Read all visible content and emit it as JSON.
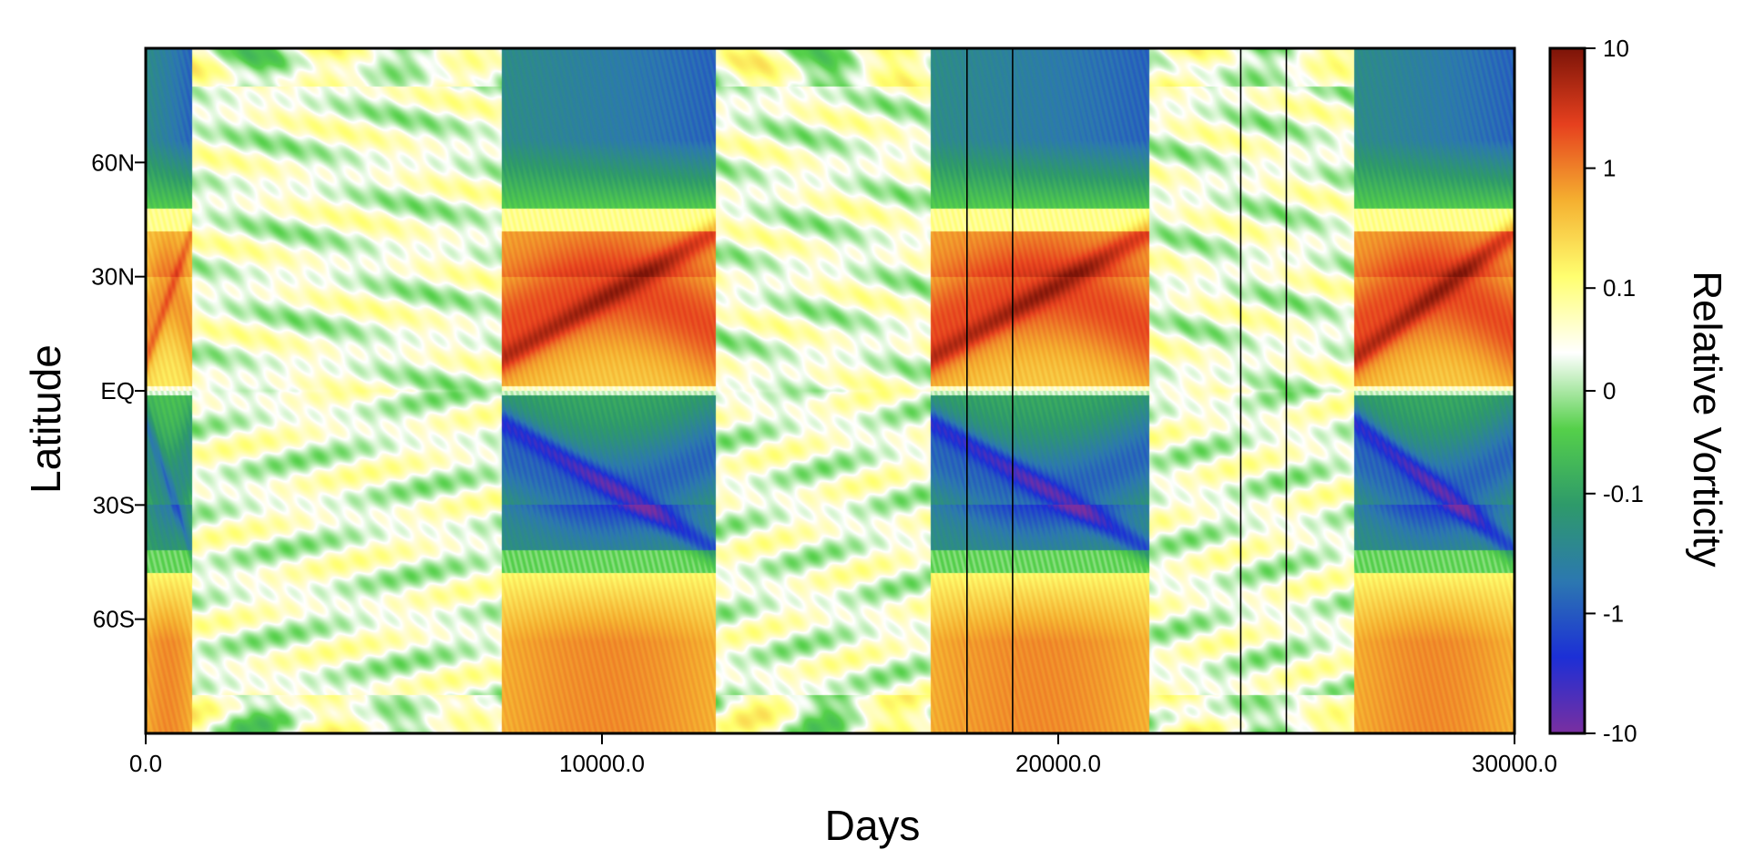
{
  "chart_data": {
    "type": "heatmap",
    "title": "",
    "xlabel": "Days",
    "ylabel": "Latitude",
    "xlim": [
      0,
      30000
    ],
    "x_ticks": [
      {
        "value": 0,
        "label": "0.0"
      },
      {
        "value": 10000,
        "label": "10000.0"
      },
      {
        "value": 20000,
        "label": "20000.0"
      },
      {
        "value": 30000,
        "label": "30000.0"
      }
    ],
    "y_ticks": [
      {
        "value": 60,
        "label": "60N"
      },
      {
        "value": 30,
        "label": "30N"
      },
      {
        "value": 0,
        "label": "EQ"
      },
      {
        "value": -30,
        "label": "30S"
      },
      {
        "value": -60,
        "label": "60S"
      }
    ],
    "ylim": [
      -90,
      90
    ],
    "colorbar": {
      "label": "Relative Vorticity",
      "scale": "symmetric-log",
      "range": [
        -10,
        10
      ],
      "ticks": [
        {
          "value": 10,
          "label": "10"
        },
        {
          "value": 1,
          "label": "1"
        },
        {
          "value": 0.1,
          "label": "0.1"
        },
        {
          "value": 0,
          "label": "0"
        },
        {
          "value": -0.1,
          "label": "-0.1"
        },
        {
          "value": -1,
          "label": "-1"
        },
        {
          "value": -10,
          "label": "-10"
        }
      ],
      "colors": [
        "#7a2fa0",
        "#1c2fd6",
        "#2c78b0",
        "#2e9a6a",
        "#55d04a",
        "#ffffff",
        "#ffff70",
        "#f5b030",
        "#e6401e",
        "#7c1408"
      ]
    },
    "marker_lines_days": [
      18000,
      19000,
      24000,
      25000
    ],
    "regimes": [
      {
        "start": 0,
        "end": 1000,
        "type": "active",
        "strength": 0.7
      },
      {
        "start": 1000,
        "end": 7800,
        "type": "quiet"
      },
      {
        "start": 7800,
        "end": 12500,
        "type": "active",
        "strength": 1.0
      },
      {
        "start": 12500,
        "end": 17200,
        "type": "quiet"
      },
      {
        "start": 17200,
        "end": 22000,
        "type": "active",
        "strength": 1.0
      },
      {
        "start": 22000,
        "end": 26500,
        "type": "quiet"
      },
      {
        "start": 26500,
        "end": 30000,
        "type": "active",
        "strength": 1.0
      }
    ]
  }
}
